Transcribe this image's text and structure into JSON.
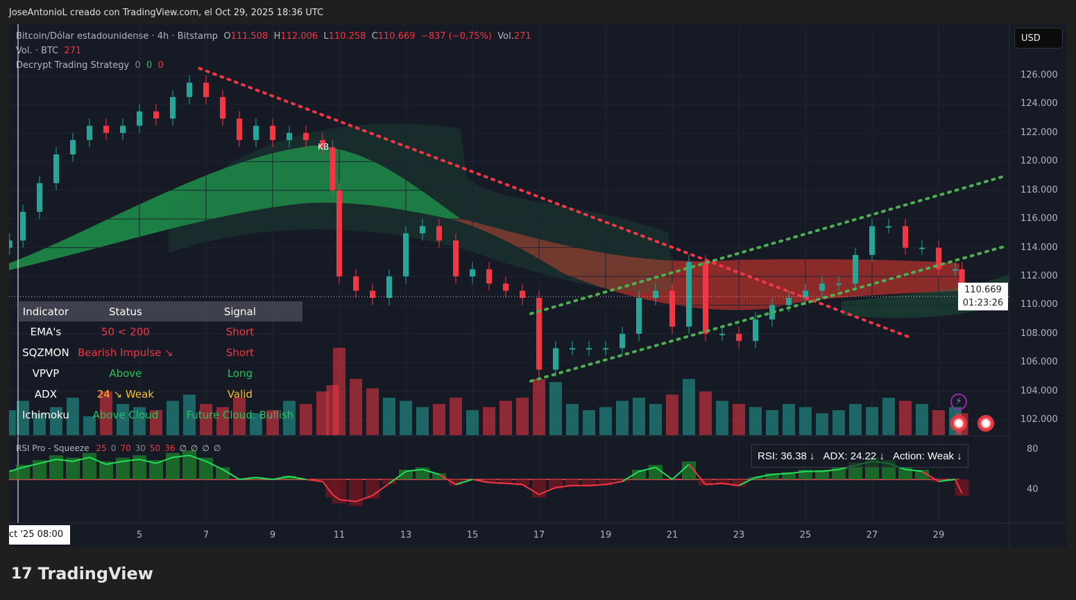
{
  "credit": "JoseAntonioL creado con TradingView.com, el Oct 29, 2025 18:36 UTC",
  "legend": {
    "symbol": "Bitcoin/Dólar estadounidense · 4h · Bitstamp",
    "o_label": "O",
    "o": "111.508",
    "h_label": "H",
    "h": "112.006",
    "l_label": "L",
    "l": "110.258",
    "c_label": "C",
    "c": "110.669",
    "change": "−837 (−0,75%)",
    "vol_label": "Vol.",
    "vol": "271",
    "vol_row_label": "Vol. · BTC",
    "vol_row_value": "271",
    "strategy_label": "Decrypt Trading Strategy",
    "strategy_values": [
      "0",
      "0",
      "0"
    ]
  },
  "currency": "USD",
  "last_price": "110.669",
  "countdown": "01:23:26",
  "marker": "KB",
  "table": {
    "headers": [
      "Indicator",
      "Status",
      "Signal"
    ],
    "rows": [
      {
        "k": "EMA's",
        "status": "50 < 200",
        "signal": "Short",
        "sc": "red",
        "gc": "red"
      },
      {
        "k": "SQZMON",
        "status": "Bearish Impulse ↘",
        "signal": "Short",
        "sc": "red",
        "gc": "red"
      },
      {
        "k": "VPVP",
        "status": "Above",
        "signal": "Long",
        "sc": "green",
        "gc": "green"
      },
      {
        "k": "ADX",
        "status": "24 ↘ Weak",
        "signal": "Valid",
        "sc": "yellow",
        "gc": "yellow"
      },
      {
        "k": "Ichimoku",
        "status": "Above Cloud",
        "signal": "Future Cloud: Bullish",
        "sc": "green",
        "gc": "green"
      }
    ]
  },
  "rsi_legend": {
    "label": "RSI Pro - Squeeze",
    "values": [
      "25",
      "0",
      "70",
      "30",
      "50",
      "36",
      "∅",
      "∅",
      "∅",
      "∅"
    ]
  },
  "rsi_box": {
    "rsi": "RSI: 36.38 ↓",
    "adx": "ADX: 24.22 ↓",
    "action": "Action: Weak ↓"
  },
  "brand": "TradingView",
  "colors": {
    "up": "#26a69a",
    "down": "#f23645",
    "background": "#161a25",
    "rsi_up": "#22e05a"
  },
  "chart_data": {
    "type": "candlestick",
    "title": "Bitcoin/Dólar estadounidense · 4h · Bitstamp",
    "ylim": [
      100000,
      128000
    ],
    "y_ticks": [
      "126.000",
      "124.000",
      "122.000",
      "120.000",
      "118.000",
      "116.000",
      "114.000",
      "112.000",
      "110.000",
      "108.000",
      "106.000",
      "104.000",
      "102.000"
    ],
    "x_start_label": "ct '25  08:00",
    "x_ticks": [
      "5",
      "7",
      "9",
      "11",
      "13",
      "15",
      "17",
      "19",
      "21",
      "23",
      "25",
      "27",
      "29"
    ],
    "x_tick_days": [
      5,
      7,
      9,
      11,
      13,
      15,
      17,
      19,
      21,
      23,
      25,
      27,
      29
    ],
    "days": [
      1.1,
      1.5,
      2,
      2.5,
      3,
      3.5,
      4,
      4.5,
      5,
      5.5,
      6,
      6.5,
      7,
      7.5,
      8,
      8.5,
      9,
      9.5,
      10,
      10.5,
      10.8,
      11,
      11.5,
      12,
      12.5,
      13,
      13.5,
      14,
      14.5,
      15,
      15.5,
      16,
      16.5,
      17,
      17.5,
      18,
      18.5,
      19,
      19.5,
      20,
      20.5,
      21,
      21.5,
      22,
      22.5,
      23,
      23.5,
      24,
      24.5,
      25,
      25.5,
      26,
      26.5,
      27,
      27.5,
      28,
      28.5,
      29,
      29.5,
      29.7
    ],
    "close": [
      114.5,
      116.5,
      118.5,
      120.5,
      121.5,
      122.5,
      122.0,
      122.5,
      123.5,
      123.0,
      124.5,
      125.5,
      124.5,
      123.0,
      121.5,
      122.5,
      121.5,
      122.0,
      121.5,
      121.0,
      118.0,
      112.0,
      111.0,
      110.5,
      112.0,
      115.0,
      115.5,
      114.5,
      112.0,
      112.5,
      111.5,
      111.0,
      110.5,
      105.5,
      107.0,
      107.0,
      107.0,
      107.0,
      108.0,
      110.5,
      111.0,
      108.5,
      113.0,
      108.0,
      108.0,
      107.5,
      109.0,
      110.0,
      110.5,
      111.0,
      111.5,
      111.5,
      113.5,
      115.5,
      115.5,
      114.0,
      114.0,
      112.5,
      112.5,
      110.669
    ],
    "volume": [
      40,
      55,
      35,
      45,
      60,
      30,
      70,
      50,
      45,
      40,
      55,
      65,
      50,
      45,
      60,
      35,
      40,
      55,
      50,
      70,
      80,
      140,
      90,
      75,
      60,
      55,
      45,
      50,
      60,
      40,
      45,
      55,
      60,
      90,
      85,
      50,
      40,
      45,
      55,
      60,
      50,
      65,
      90,
      70,
      55,
      50,
      45,
      40,
      50,
      45,
      35,
      40,
      50,
      45,
      60,
      55,
      50,
      40,
      45,
      35
    ],
    "rsi_ylim": [
      0,
      100
    ],
    "rsi_ticks": [
      "80",
      "40"
    ],
    "rsi": [
      58,
      62,
      66,
      70,
      68,
      72,
      65,
      68,
      70,
      66,
      72,
      74,
      68,
      60,
      50,
      52,
      50,
      53,
      50,
      48,
      35,
      30,
      28,
      34,
      46,
      58,
      60,
      55,
      45,
      50,
      47,
      46,
      45,
      35,
      42,
      44,
      44,
      45,
      48,
      58,
      62,
      50,
      65,
      45,
      46,
      44,
      52,
      55,
      56,
      58,
      58,
      60,
      64,
      68,
      66,
      60,
      58,
      48,
      50,
      36.38
    ],
    "lines": [
      {
        "kind": "downtrend",
        "style": "dotted",
        "color": "#f23645",
        "from": [
          6.8,
          126.5
        ],
        "to": [
          28.2,
          107.7
        ]
      },
      {
        "kind": "channel-lower",
        "style": "dotted",
        "color": "#4caf50",
        "from": [
          16.75,
          104.7
        ],
        "to": [
          31.0,
          114.1
        ]
      },
      {
        "kind": "channel-upper",
        "style": "dotted",
        "color": "#4caf50",
        "from": [
          16.75,
          109.4
        ],
        "to": [
          31.0,
          119.0
        ]
      }
    ]
  }
}
